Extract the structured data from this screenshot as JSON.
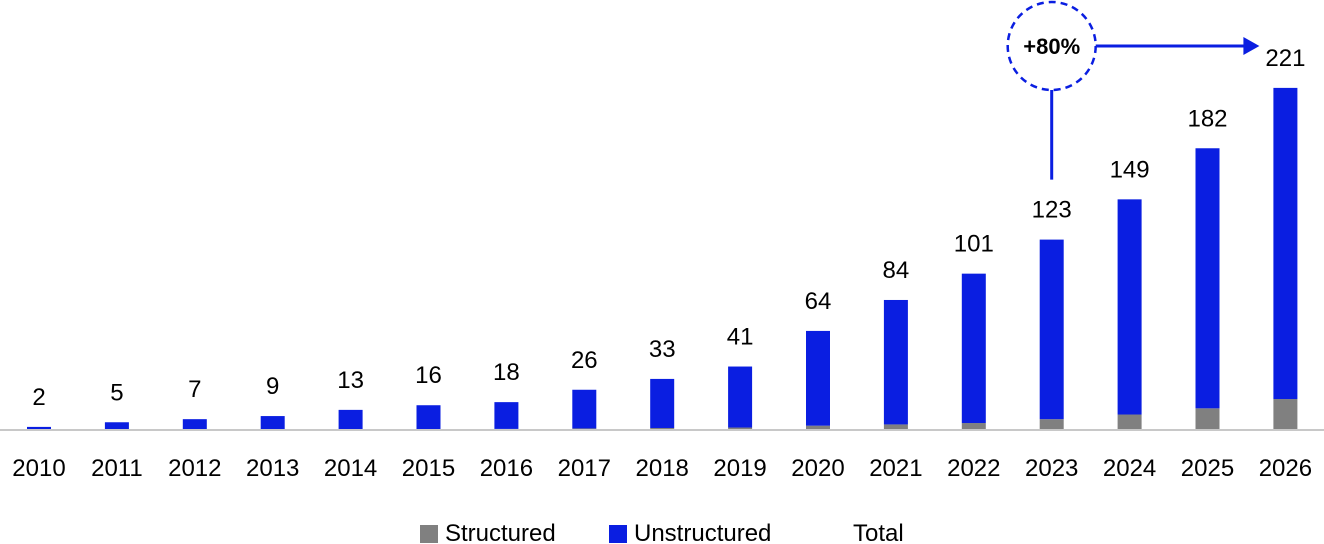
{
  "chart_data": {
    "type": "bar",
    "stacked": true,
    "categories": [
      "2010",
      "2011",
      "2012",
      "2013",
      "2014",
      "2015",
      "2016",
      "2017",
      "2018",
      "2019",
      "2020",
      "2021",
      "2022",
      "2023",
      "2024",
      "2025",
      "2026"
    ],
    "series": [
      {
        "name": "Structured",
        "color": "#808080",
        "values": [
          0.1,
          0.2,
          0.3,
          0.4,
          0.5,
          0.6,
          0.7,
          1,
          1.3,
          1.6,
          2.8,
          3.6,
          4.5,
          7,
          10,
          14,
          20
        ]
      },
      {
        "name": "Unstructured",
        "color": "#0a1ee1",
        "values": [
          1.9,
          4.8,
          6.7,
          8.6,
          12.5,
          15.4,
          17.3,
          25,
          31.7,
          39.4,
          61.2,
          80.4,
          96.5,
          116,
          139,
          168,
          201
        ]
      }
    ],
    "totals": [
      2,
      5,
      7,
      9,
      13,
      16,
      18,
      26,
      33,
      41,
      64,
      84,
      101,
      123,
      149,
      182,
      221
    ],
    "legend": [
      "Structured",
      "Unstructured",
      "Total"
    ],
    "legend_position": "bottom",
    "grid": false,
    "ylim": [
      0,
      230
    ],
    "annotation": {
      "text": "+80%",
      "from": "2023",
      "to": "2026",
      "color": "#0a1ee1"
    }
  }
}
